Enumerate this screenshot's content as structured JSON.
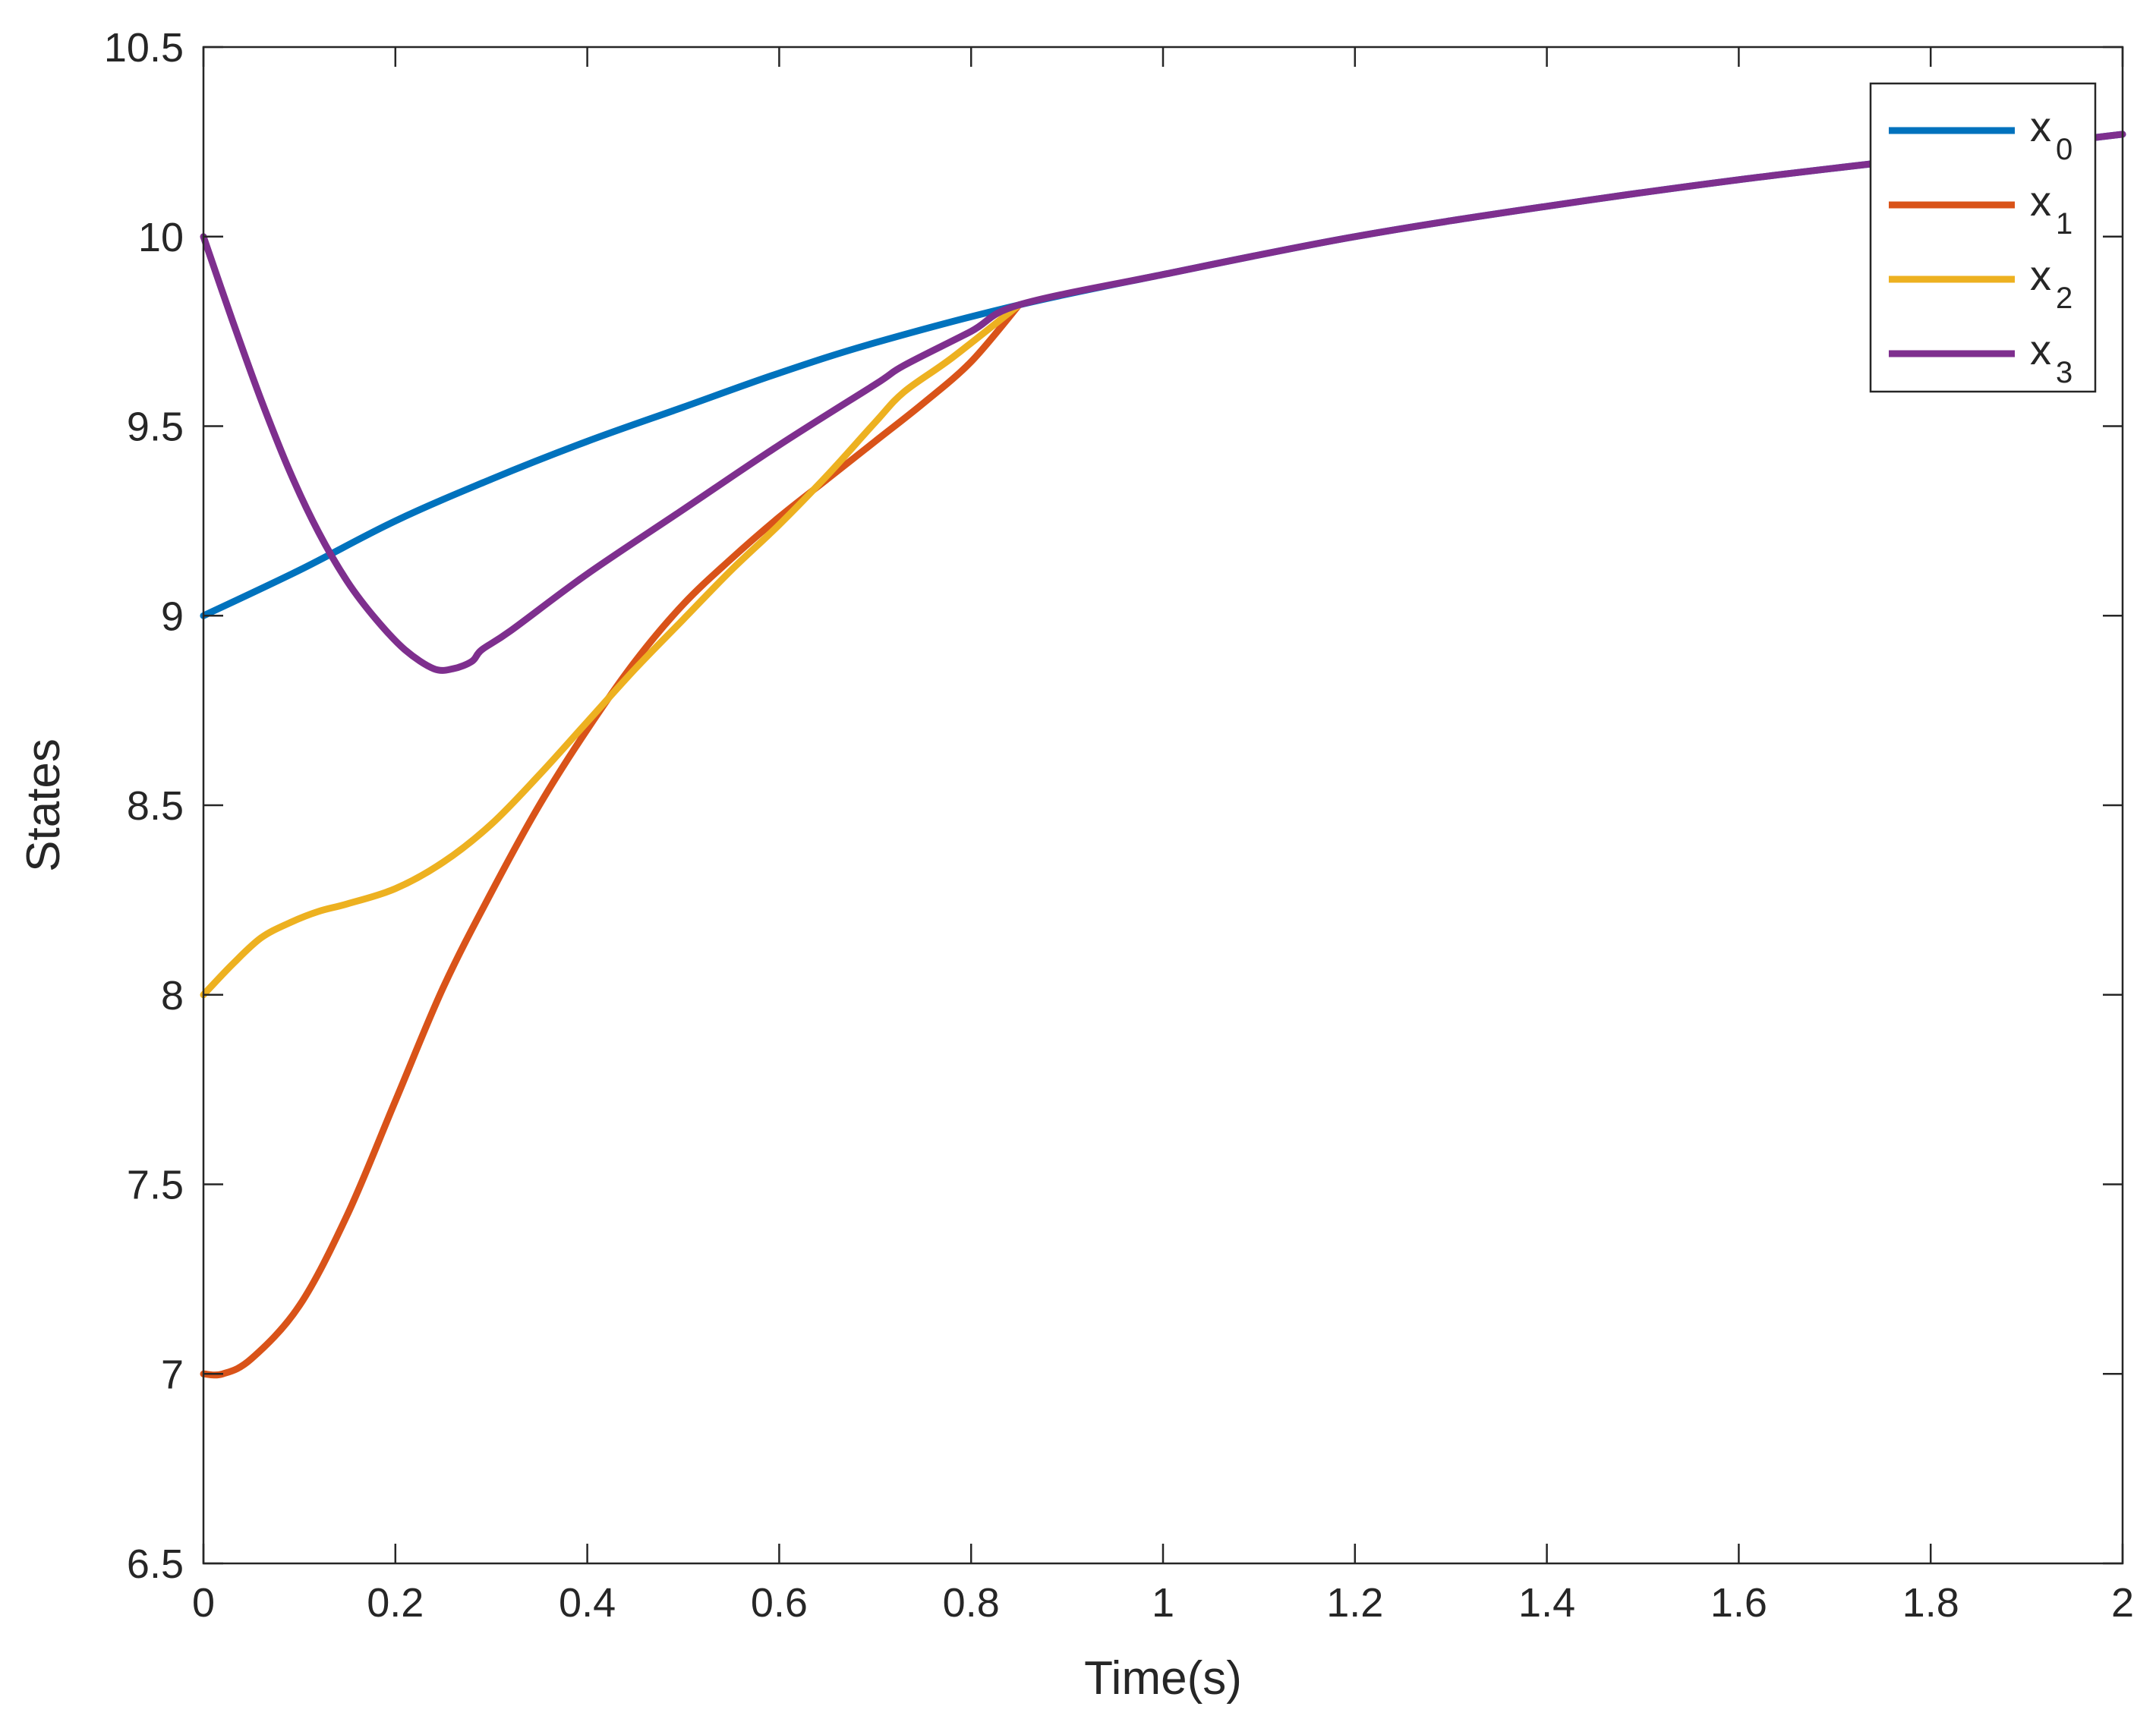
{
  "chart_data": {
    "type": "line",
    "title": "",
    "xlabel": "Time(s)",
    "ylabel": "States",
    "xlim": [
      0,
      2
    ],
    "ylim": [
      6.5,
      10.5
    ],
    "x_ticks": [
      "0",
      "0.2",
      "0.4",
      "0.6",
      "0.8",
      "1",
      "1.2",
      "1.4",
      "1.6",
      "1.8",
      "2"
    ],
    "y_ticks": [
      "6.5",
      "7",
      "7.5",
      "8",
      "8.5",
      "9",
      "9.5",
      "10",
      "10.5"
    ],
    "grid": false,
    "legend": {
      "placement": "top-right"
    },
    "series": [
      {
        "name": "x_0",
        "label_main": "x",
        "label_sub": "0",
        "color": "#0072BD",
        "points": [
          [
            0,
            9.0
          ],
          [
            0.1,
            9.12
          ],
          [
            0.2,
            9.25
          ],
          [
            0.3,
            9.36
          ],
          [
            0.4,
            9.46
          ],
          [
            0.5,
            9.55
          ],
          [
            0.6,
            9.64
          ],
          [
            0.7,
            9.72
          ],
          [
            0.85,
            9.82
          ],
          [
            1.0,
            9.9
          ],
          [
            1.2,
            10.0
          ],
          [
            1.4,
            10.08
          ],
          [
            1.6,
            10.15
          ],
          [
            1.8,
            10.21
          ],
          [
            2.0,
            10.27
          ]
        ]
      },
      {
        "name": "x_1",
        "label_main": "x",
        "label_sub": "1",
        "color": "#D95319",
        "points": [
          [
            0,
            7.0
          ],
          [
            0.02,
            7.0
          ],
          [
            0.05,
            7.04
          ],
          [
            0.1,
            7.18
          ],
          [
            0.15,
            7.42
          ],
          [
            0.2,
            7.72
          ],
          [
            0.25,
            8.02
          ],
          [
            0.3,
            8.27
          ],
          [
            0.35,
            8.5
          ],
          [
            0.4,
            8.7
          ],
          [
            0.45,
            8.88
          ],
          [
            0.5,
            9.03
          ],
          [
            0.55,
            9.15
          ],
          [
            0.6,
            9.26
          ],
          [
            0.65,
            9.36
          ],
          [
            0.7,
            9.46
          ],
          [
            0.75,
            9.56
          ],
          [
            0.8,
            9.67
          ],
          [
            0.85,
            9.82
          ]
        ]
      },
      {
        "name": "x_2",
        "label_main": "x",
        "label_sub": "2",
        "color": "#EDB120",
        "points": [
          [
            0,
            8.0
          ],
          [
            0.03,
            8.08
          ],
          [
            0.06,
            8.15
          ],
          [
            0.09,
            8.19
          ],
          [
            0.12,
            8.22
          ],
          [
            0.15,
            8.24
          ],
          [
            0.2,
            8.28
          ],
          [
            0.25,
            8.35
          ],
          [
            0.3,
            8.45
          ],
          [
            0.35,
            8.58
          ],
          [
            0.4,
            8.72
          ],
          [
            0.45,
            8.86
          ],
          [
            0.5,
            8.99
          ],
          [
            0.55,
            9.12
          ],
          [
            0.6,
            9.24
          ],
          [
            0.65,
            9.37
          ],
          [
            0.7,
            9.51
          ],
          [
            0.73,
            9.59
          ],
          [
            0.78,
            9.68
          ],
          [
            0.85,
            9.82
          ]
        ]
      },
      {
        "name": "x_3",
        "label_main": "x",
        "label_sub": "3",
        "color": "#7E2F8E",
        "points": [
          [
            0,
            10.0
          ],
          [
            0.03,
            9.78
          ],
          [
            0.06,
            9.57
          ],
          [
            0.09,
            9.38
          ],
          [
            0.12,
            9.22
          ],
          [
            0.15,
            9.09
          ],
          [
            0.18,
            8.99
          ],
          [
            0.21,
            8.91
          ],
          [
            0.24,
            8.86
          ],
          [
            0.26,
            8.86
          ],
          [
            0.28,
            8.88
          ],
          [
            0.29,
            8.91
          ],
          [
            0.32,
            8.96
          ],
          [
            0.4,
            9.11
          ],
          [
            0.5,
            9.28
          ],
          [
            0.6,
            9.45
          ],
          [
            0.7,
            9.61
          ],
          [
            0.73,
            9.66
          ],
          [
            0.8,
            9.75
          ],
          [
            0.85,
            9.82
          ],
          [
            1.0,
            9.9
          ],
          [
            1.2,
            10.0
          ],
          [
            1.4,
            10.08
          ],
          [
            1.6,
            10.15
          ],
          [
            1.8,
            10.21
          ],
          [
            2.0,
            10.27
          ]
        ]
      }
    ]
  }
}
